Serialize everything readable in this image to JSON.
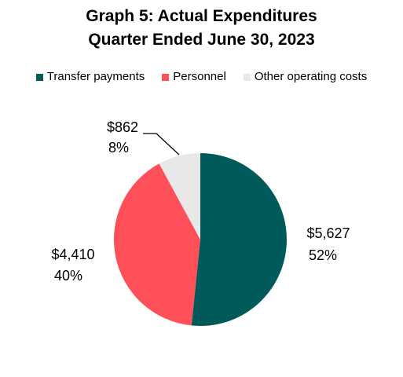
{
  "chart_data": {
    "type": "pie",
    "title": "Graph 5: Actual Expenditures",
    "subtitle": "Quarter Ended June 30, 2023",
    "legend_placement": "top",
    "slices": [
      {
        "name": "Transfer payments",
        "value": 5627,
        "value_label": "$5,627",
        "percent": 52,
        "percent_label": "52%",
        "color": "#005a5a"
      },
      {
        "name": "Personnel",
        "value": 4410,
        "value_label": "$4,410",
        "percent": 40,
        "percent_label": "40%",
        "color": "#ff4f58"
      },
      {
        "name": "Other operating costs",
        "value": 862,
        "value_label": "$862",
        "percent": 8,
        "percent_label": "8%",
        "color": "#e8e8e8"
      }
    ]
  }
}
